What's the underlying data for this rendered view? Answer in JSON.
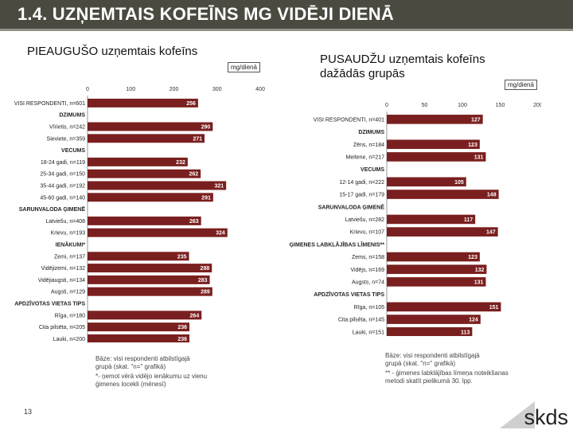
{
  "title": "1.4. UZŅEMTAIS KOFEĪNS MG VIDĒJI DIENĀ",
  "page_number": "13",
  "logo": {
    "text": "skds"
  },
  "colors": {
    "header": "#4a4a40",
    "bar": "#7a1f1f",
    "text_dark": "#111111"
  },
  "left_panel": {
    "title": "PIEAUGUŠO uzņemtais kofeīns",
    "unit": "mg/dienā",
    "note_lines": [
      "Bāze: visi respondenti atbilstīgajā",
      "grupā (skat. \"n=\" grafikā)",
      "*- ņemot vērā vidējo ienākumu uz vienu",
      "ģimenes locekli (mēnesī)"
    ]
  },
  "right_panel": {
    "title": "PUSAUDŽU uzņemtais kofeīns",
    "subtitle": "dažādās grupās",
    "unit": "mg/dienā",
    "note_lines": [
      "Bāze: visi respondenti atbilstīgajā",
      "grupā (skat. \"n=\" grafikā)",
      "** - ģimenes labklājības līmeņa noteikšanas",
      "metodi skatīt pielikumā 30. lpp."
    ]
  },
  "chart_data": [
    {
      "type": "bar",
      "orientation": "horizontal",
      "xlim": [
        0,
        400
      ],
      "ticks": [
        "0",
        "100",
        "200",
        "300",
        "400"
      ],
      "categories": [
        "VISI RESPONDENTI, n=601",
        "DZIMUMS",
        "Vīrietis, n=242",
        "Sieviete, n=359",
        "VECUMS",
        "18-24 gadi, n=119",
        "25-34 gadi, n=150",
        "35-44 gadi, n=192",
        "45-60 gadi, n=140",
        "SARUNVALODA ĢIMENĒ",
        "Latviešu, n=408",
        "Krievu, n=193",
        "IENĀKUMI*",
        "Zemi, n=137",
        "Vidējizemi, n=132",
        "Vidējiaugsti, n=134",
        "Augsti, n=129",
        "APDZĪVOTAS VIETAS TIPS",
        "Rīga, n=180",
        "Cita pilsēta, n=205",
        "Lauki, n=200"
      ],
      "values": [
        256,
        null,
        290,
        271,
        null,
        232,
        262,
        321,
        291,
        null,
        263,
        324,
        null,
        235,
        288,
        283,
        289,
        null,
        264,
        236,
        236
      ],
      "labels": [
        "256",
        "",
        "290",
        "271",
        "",
        "232",
        "262",
        "321",
        "291",
        "",
        "263",
        "324",
        "",
        "235",
        "288",
        "283",
        "289",
        "",
        "264",
        "236",
        "236"
      ]
    },
    {
      "type": "bar",
      "orientation": "horizontal",
      "xlim": [
        0,
        200
      ],
      "ticks": [
        "0",
        "50",
        "100",
        "150",
        "200"
      ],
      "categories": [
        "VISI RESPONDENTI, n=401",
        "DZIMUMS",
        "Zēns, n=184",
        "Meitene, n=217",
        "VECUMS",
        "12-14 gadi, n=222",
        "15-17 gadi, n=179",
        "SARUNVALODA ĢIMENĒ",
        "Latviešu, n=282",
        "Krievu, n=107",
        "ĢIMENES LABKLĀJĪBAS LĪMENIS**",
        "Zems, n=158",
        "Vidējs, n=169",
        "Augsts, n=74",
        "APDZĪVOTAS VIETAS TIPS",
        "Rīga, n=105",
        "Cita pilsēta, n=145",
        "Lauki, n=151"
      ],
      "values": [
        127,
        null,
        123,
        131,
        null,
        105,
        148,
        null,
        117,
        147,
        null,
        123,
        132,
        131,
        null,
        151,
        124,
        113
      ],
      "labels": [
        "127",
        "",
        "123",
        "131",
        "",
        "105",
        "148",
        "",
        "117",
        "147",
        "",
        "123",
        "132",
        "131",
        "",
        "151",
        "124",
        "113"
      ]
    }
  ]
}
